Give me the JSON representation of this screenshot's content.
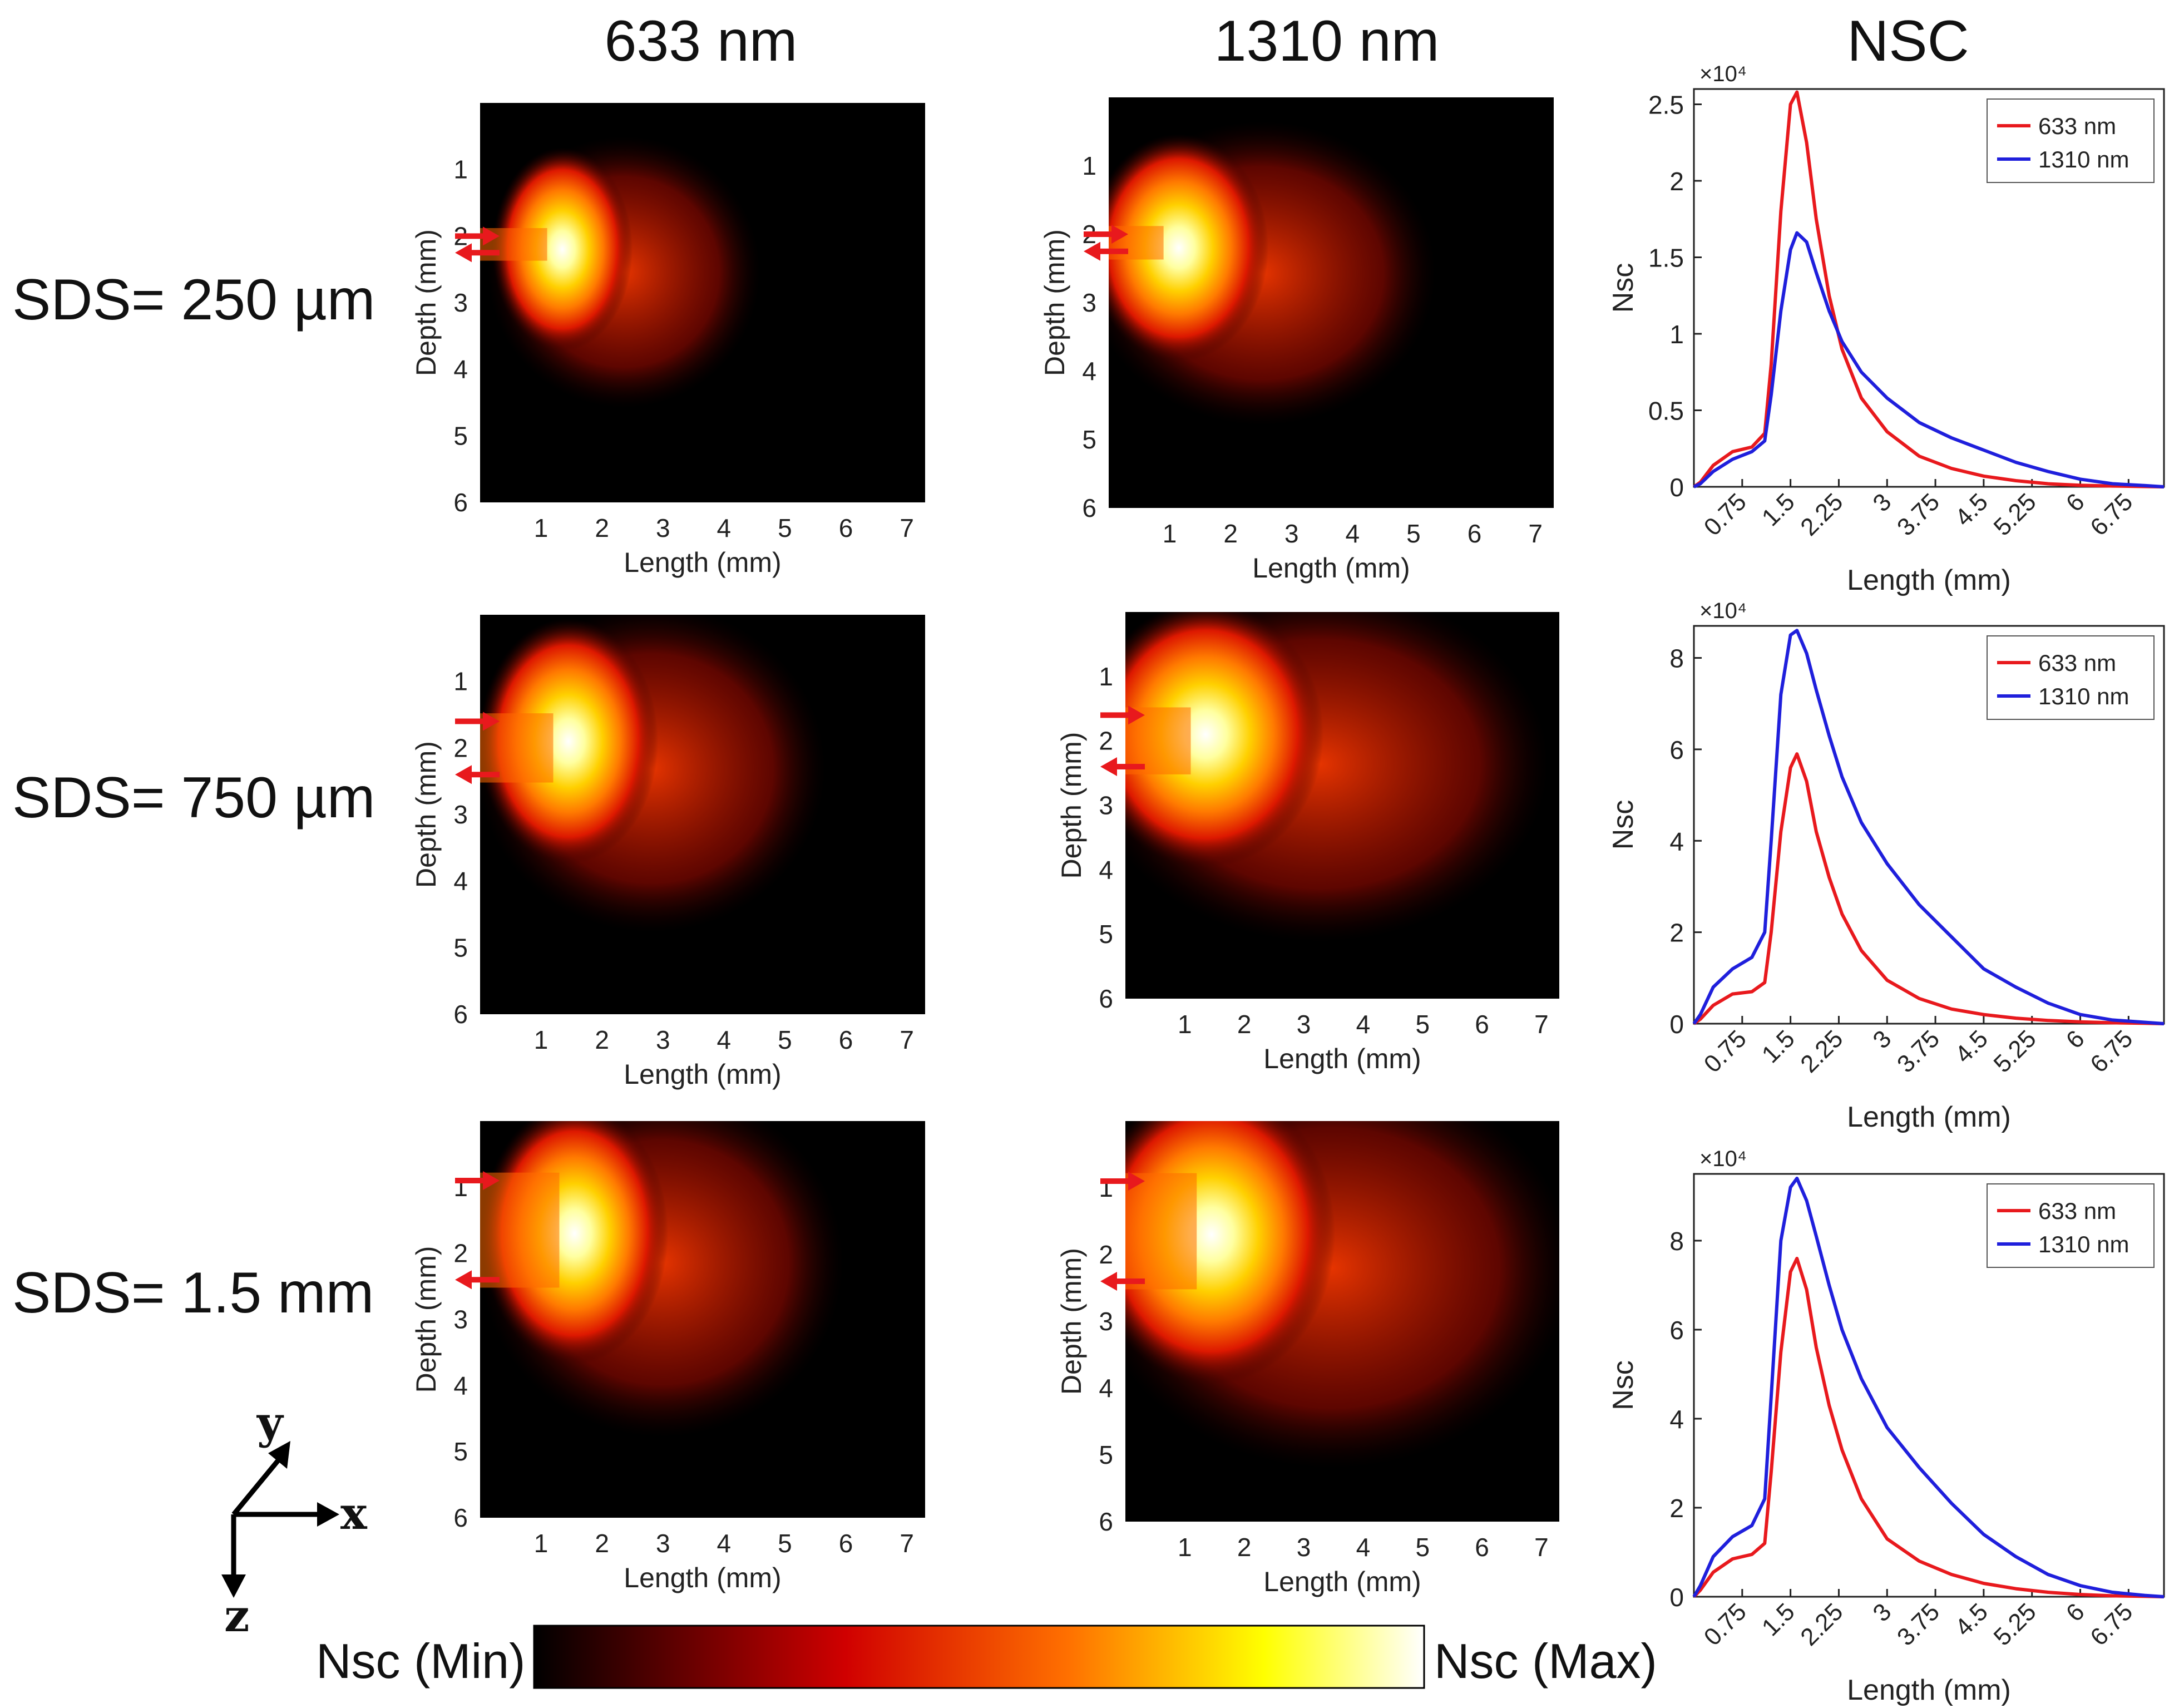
{
  "column_titles": [
    "633 nm",
    "1310 nm",
    "NSC"
  ],
  "row_labels": [
    "SDS= 250 µm",
    "SDS= 750 µm",
    "SDS= 1.5 mm"
  ],
  "colorbar": {
    "min_label": "Nsc (Min)",
    "max_label": "Nsc (Max)",
    "colormap": "hot"
  },
  "axis_indicator": {
    "x": "x",
    "y": "y",
    "z": "z"
  },
  "chart_data": [
    {
      "type": "heatmap",
      "row": 0,
      "wavelength": "633 nm",
      "xlabel": "Length (mm)",
      "ylabel": "Depth (mm)",
      "xticks": [
        "1",
        "2",
        "3",
        "4",
        "5",
        "6",
        "7"
      ],
      "yticks": [
        "1",
        "2",
        "3",
        "4",
        "5",
        "6"
      ],
      "xlim": [
        0,
        7.3
      ],
      "ylim": [
        0,
        6
      ],
      "source_depth_mm": 2.0,
      "detector_depth_mm": 2.25,
      "peak_mm": [
        1.1,
        2.2
      ],
      "extent_mm": [
        3.6,
        3.4
      ]
    },
    {
      "type": "heatmap",
      "row": 0,
      "wavelength": "1310 nm",
      "xlabel": "Length (mm)",
      "ylabel": "Depth (mm)",
      "xticks": [
        "1",
        "2",
        "3",
        "4",
        "5",
        "6",
        "7"
      ],
      "yticks": [
        "1",
        "2",
        "3",
        "4",
        "5",
        "6"
      ],
      "xlim": [
        0,
        7.3
      ],
      "ylim": [
        0,
        6
      ],
      "source_depth_mm": 2.0,
      "detector_depth_mm": 2.25,
      "peak_mm": [
        0.9,
        2.2
      ],
      "extent_mm": [
        4.6,
        3.7
      ]
    },
    {
      "type": "heatmap",
      "row": 1,
      "wavelength": "633 nm",
      "xlabel": "Length (mm)",
      "ylabel": "Depth (mm)",
      "xticks": [
        "1",
        "2",
        "3",
        "4",
        "5",
        "6",
        "7"
      ],
      "yticks": [
        "1",
        "2",
        "3",
        "4",
        "5",
        "6"
      ],
      "xlim": [
        0,
        7.3
      ],
      "ylim": [
        0,
        6
      ],
      "source_depth_mm": 1.6,
      "detector_depth_mm": 2.4,
      "peak_mm": [
        1.2,
        1.9
      ],
      "extent_mm": [
        4.6,
        4.1
      ]
    },
    {
      "type": "heatmap",
      "row": 1,
      "wavelength": "1310 nm",
      "xlabel": "Length (mm)",
      "ylabel": "Depth (mm)",
      "xticks": [
        "1",
        "2",
        "3",
        "4",
        "5",
        "6",
        "7"
      ],
      "yticks": [
        "1",
        "2",
        "3",
        "4",
        "5",
        "6"
      ],
      "xlim": [
        0,
        7.3
      ],
      "ylim": [
        0,
        6
      ],
      "source_depth_mm": 1.6,
      "detector_depth_mm": 2.4,
      "peak_mm": [
        1.1,
        1.9
      ],
      "extent_mm": [
        6.2,
        4.6
      ]
    },
    {
      "type": "heatmap",
      "row": 2,
      "wavelength": "633 nm",
      "xlabel": "Length (mm)",
      "ylabel": "Depth (mm)",
      "xticks": [
        "1",
        "2",
        "3",
        "4",
        "5",
        "6",
        "7"
      ],
      "yticks": [
        "1",
        "2",
        "3",
        "4",
        "5",
        "6"
      ],
      "xlim": [
        0,
        7.3
      ],
      "ylim": [
        0,
        6
      ],
      "source_depth_mm": 0.9,
      "detector_depth_mm": 2.4,
      "peak_mm": [
        1.3,
        1.7
      ],
      "extent_mm": [
        4.8,
        4.4
      ]
    },
    {
      "type": "heatmap",
      "row": 2,
      "wavelength": "1310 nm",
      "xlabel": "Length (mm)",
      "ylabel": "Depth (mm)",
      "xticks": [
        "1",
        "2",
        "3",
        "4",
        "5",
        "6",
        "7"
      ],
      "yticks": [
        "1",
        "2",
        "3",
        "4",
        "5",
        "6"
      ],
      "xlim": [
        0,
        7.3
      ],
      "ylim": [
        0,
        6
      ],
      "source_depth_mm": 0.9,
      "detector_depth_mm": 2.4,
      "peak_mm": [
        1.2,
        1.7
      ],
      "extent_mm": [
        6.5,
        5.0
      ]
    },
    {
      "type": "line",
      "row": 0,
      "xlabel": "Length (mm)",
      "ylabel": "Nsc",
      "exponent_label": "×10⁴",
      "xticks": [
        "0.75",
        "1.5",
        "2.25",
        "3",
        "3.75",
        "4.5",
        "5.25",
        "6",
        "6.75"
      ],
      "yticks": [
        "0",
        "0.5",
        "1",
        "1.5",
        "2",
        "2.5"
      ],
      "xlim": [
        0,
        7.3
      ],
      "ylim": [
        0,
        2.6
      ],
      "legend_position": "top-right",
      "x": [
        0,
        0.1,
        0.3,
        0.6,
        0.9,
        1.1,
        1.2,
        1.35,
        1.5,
        1.6,
        1.75,
        1.9,
        2.1,
        2.3,
        2.6,
        3.0,
        3.5,
        4.0,
        4.5,
        5.0,
        5.5,
        6.0,
        6.5,
        7.0,
        7.3
      ],
      "series": [
        {
          "name": "633 nm",
          "color": "#e8191d",
          "values": [
            0,
            0.03,
            0.14,
            0.23,
            0.26,
            0.35,
            0.8,
            1.8,
            2.5,
            2.58,
            2.25,
            1.75,
            1.25,
            0.9,
            0.58,
            0.36,
            0.2,
            0.12,
            0.07,
            0.04,
            0.02,
            0.01,
            0.005,
            0.002,
            0
          ]
        },
        {
          "name": "1310 nm",
          "color": "#1f1fdc",
          "values": [
            0,
            0.02,
            0.1,
            0.18,
            0.23,
            0.3,
            0.6,
            1.15,
            1.55,
            1.66,
            1.6,
            1.4,
            1.15,
            0.95,
            0.75,
            0.58,
            0.42,
            0.32,
            0.24,
            0.16,
            0.1,
            0.05,
            0.02,
            0.008,
            0
          ]
        }
      ]
    },
    {
      "type": "line",
      "row": 1,
      "xlabel": "Length (mm)",
      "ylabel": "Nsc",
      "exponent_label": "×10⁴",
      "xticks": [
        "0.75",
        "1.5",
        "2.25",
        "3",
        "3.75",
        "4.5",
        "5.25",
        "6",
        "6.75"
      ],
      "yticks": [
        "0",
        "2",
        "4",
        "6",
        "8"
      ],
      "xlim": [
        0,
        7.3
      ],
      "ylim": [
        0,
        8.7
      ],
      "legend_position": "top-right",
      "x": [
        0,
        0.1,
        0.3,
        0.6,
        0.9,
        1.1,
        1.2,
        1.35,
        1.5,
        1.6,
        1.75,
        1.9,
        2.1,
        2.3,
        2.6,
        3.0,
        3.5,
        4.0,
        4.5,
        5.0,
        5.5,
        6.0,
        6.5,
        7.0,
        7.3
      ],
      "series": [
        {
          "name": "633 nm",
          "color": "#e8191d",
          "values": [
            0,
            0.1,
            0.4,
            0.65,
            0.7,
            0.9,
            2.0,
            4.2,
            5.6,
            5.9,
            5.3,
            4.2,
            3.2,
            2.4,
            1.6,
            0.95,
            0.55,
            0.32,
            0.2,
            0.12,
            0.07,
            0.04,
            0.02,
            0.01,
            0
          ]
        },
        {
          "name": "1310 nm",
          "color": "#1f1fdc",
          "values": [
            0,
            0.2,
            0.8,
            1.2,
            1.45,
            2.0,
            4.0,
            7.2,
            8.5,
            8.6,
            8.1,
            7.3,
            6.3,
            5.4,
            4.4,
            3.5,
            2.6,
            1.9,
            1.2,
            0.8,
            0.45,
            0.2,
            0.08,
            0.03,
            0
          ]
        }
      ]
    },
    {
      "type": "line",
      "row": 2,
      "xlabel": "Length (mm)",
      "ylabel": "Nsc",
      "exponent_label": "×10⁴",
      "xticks": [
        "0.75",
        "1.5",
        "2.25",
        "3",
        "3.75",
        "4.5",
        "5.25",
        "6",
        "6.75"
      ],
      "yticks": [
        "0",
        "2",
        "4",
        "6",
        "8"
      ],
      "xlim": [
        0,
        7.3
      ],
      "ylim": [
        0,
        9.5
      ],
      "legend_position": "top-right",
      "x": [
        0,
        0.1,
        0.3,
        0.6,
        0.9,
        1.1,
        1.2,
        1.35,
        1.5,
        1.6,
        1.75,
        1.9,
        2.1,
        2.3,
        2.6,
        3.0,
        3.5,
        4.0,
        4.5,
        5.0,
        5.5,
        6.0,
        6.5,
        7.0,
        7.3
      ],
      "series": [
        {
          "name": "633 nm",
          "color": "#e8191d",
          "values": [
            0,
            0.15,
            0.55,
            0.85,
            0.95,
            1.2,
            2.8,
            5.5,
            7.3,
            7.6,
            6.9,
            5.6,
            4.3,
            3.3,
            2.2,
            1.3,
            0.8,
            0.5,
            0.3,
            0.18,
            0.1,
            0.05,
            0.02,
            0.01,
            0
          ]
        },
        {
          "name": "1310 nm",
          "color": "#1f1fdc",
          "values": [
            0,
            0.25,
            0.9,
            1.35,
            1.6,
            2.2,
            4.5,
            8.0,
            9.2,
            9.4,
            8.9,
            8.1,
            7.0,
            6.0,
            4.9,
            3.8,
            2.9,
            2.1,
            1.4,
            0.9,
            0.5,
            0.25,
            0.1,
            0.03,
            0
          ]
        }
      ]
    }
  ]
}
